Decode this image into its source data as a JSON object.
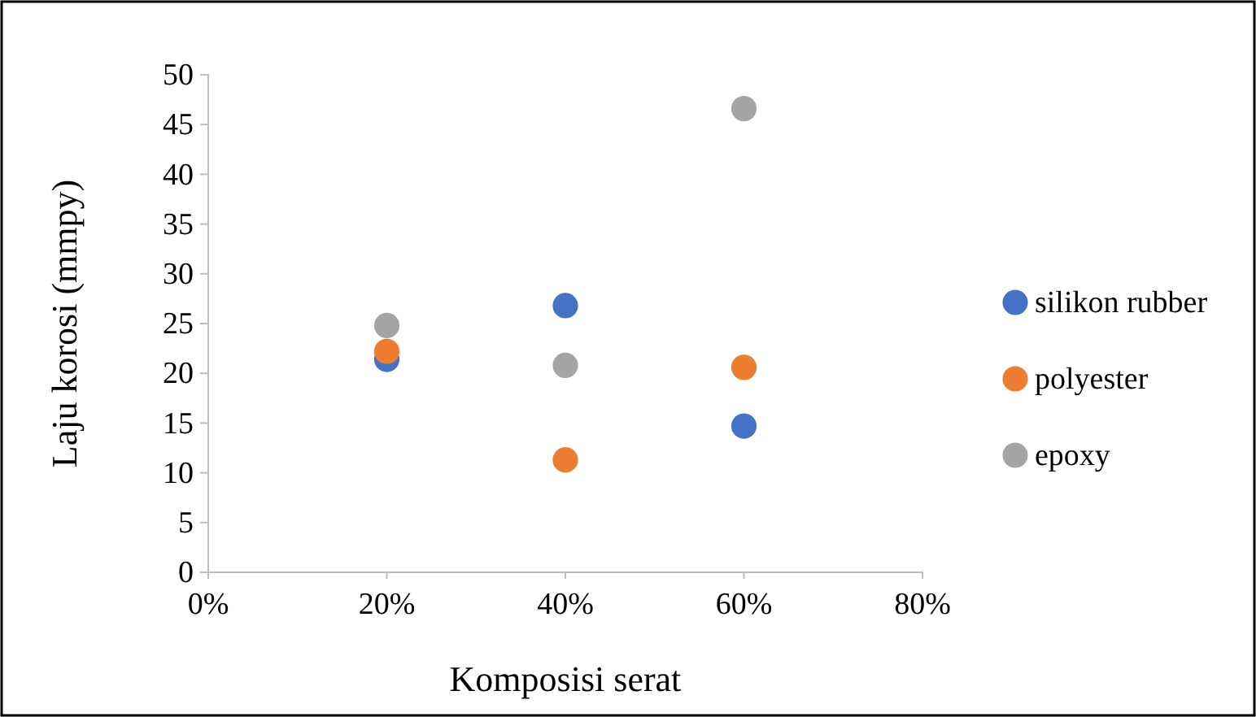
{
  "chart_data": {
    "type": "scatter",
    "xlabel": "Komposisi serat",
    "ylabel": "Laju korosi (mmpy)",
    "xlim": [
      0,
      80
    ],
    "xticks": [
      {
        "value": 0,
        "label": "0%"
      },
      {
        "value": 20,
        "label": "20%"
      },
      {
        "value": 40,
        "label": "40%"
      },
      {
        "value": 60,
        "label": "60%"
      },
      {
        "value": 80,
        "label": "80%"
      }
    ],
    "ylim": [
      0,
      50
    ],
    "yticks": [
      0,
      5,
      10,
      15,
      20,
      25,
      30,
      35,
      40,
      45,
      50
    ],
    "x": [
      20,
      40,
      60
    ],
    "series": [
      {
        "name": "silikon rubber",
        "color": "#4472c4",
        "values": [
          21.4,
          26.8,
          14.7
        ]
      },
      {
        "name": "polyester",
        "color": "#ed7d31",
        "values": [
          22.2,
          11.3,
          20.6
        ]
      },
      {
        "name": "epoxy",
        "color": "#a5a5a5",
        "values": [
          24.8,
          20.8,
          46.6
        ]
      }
    ],
    "marker": "circle",
    "grid": false,
    "legend": "right"
  }
}
